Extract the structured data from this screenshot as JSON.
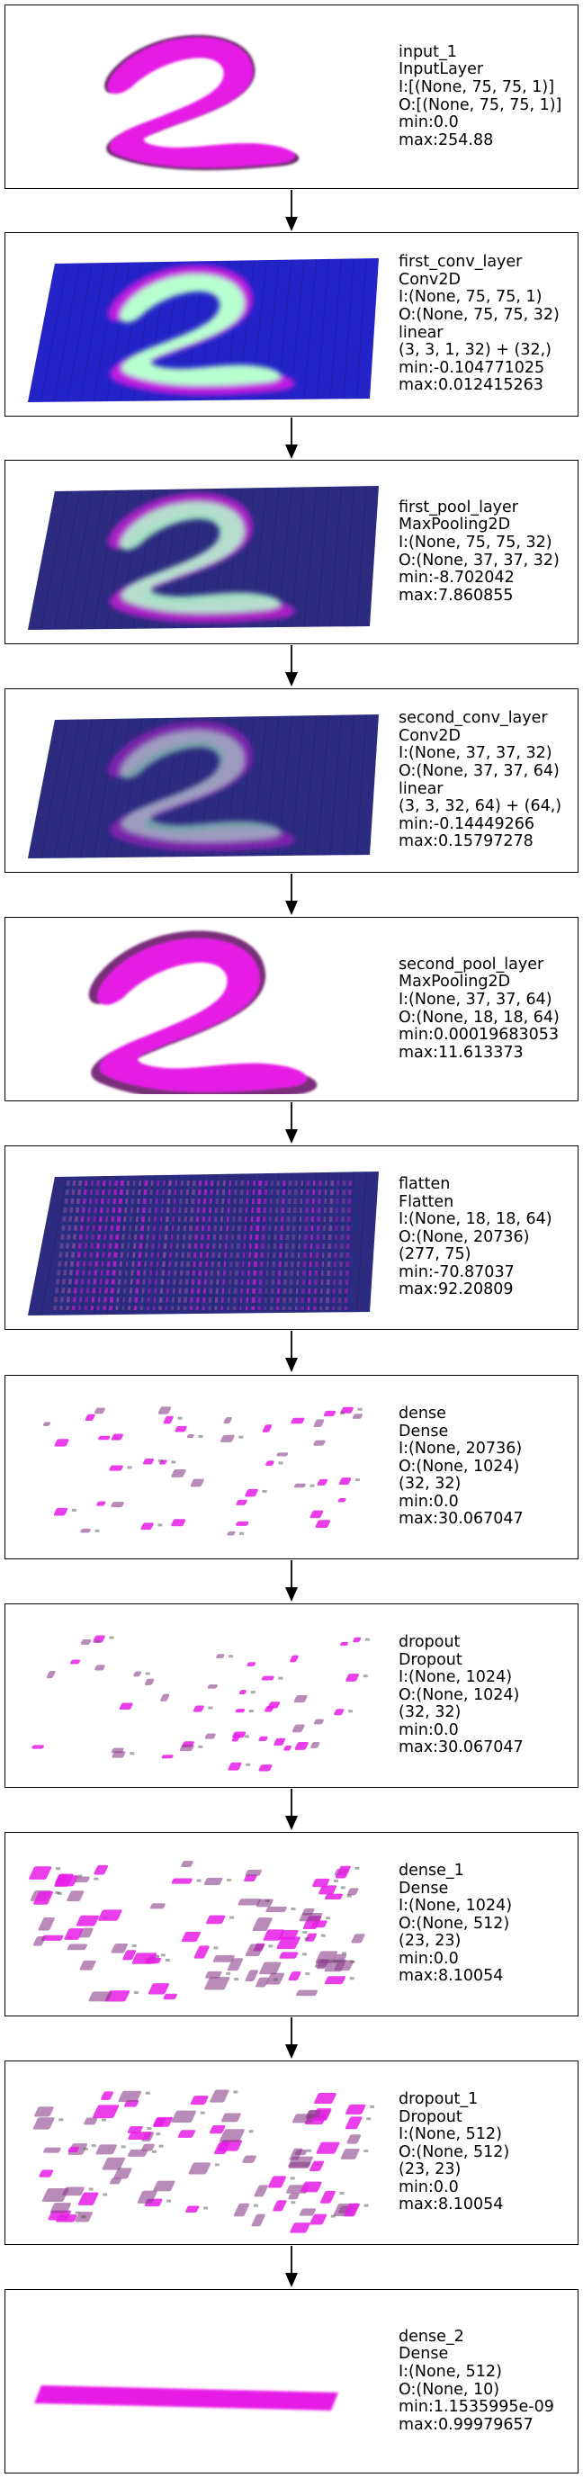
{
  "layers": [
    {
      "viz": "digit",
      "lines": [
        "input_1",
        "InputLayer",
        "I:[(None, 75, 75, 1)]",
        "O:[(None, 75, 75, 1)]",
        "min:0.0",
        "max:254.88"
      ]
    },
    {
      "viz": "plane_digit_bright",
      "lines": [
        "first_conv_layer",
        "Conv2D",
        "I:(None, 75, 75, 1)",
        "O:(None, 75, 75, 32)",
        "linear",
        "(3, 3, 1, 32) + (32,)",
        "min:-0.104771025",
        "max:0.012415263"
      ]
    },
    {
      "viz": "plane_digit_dark",
      "lines": [
        "first_pool_layer",
        "MaxPooling2D",
        "I:(None, 75, 75, 32)",
        "O:(None, 37, 37, 32)",
        "min:-8.702042",
        "max:7.860855"
      ]
    },
    {
      "viz": "plane_digit_faint",
      "lines": [
        "second_conv_layer",
        "Conv2D",
        "I:(None, 37, 37, 32)",
        "O:(None, 37, 37, 64)",
        "linear",
        "(3, 3, 32, 64) + (64,)",
        "min:-0.14449266",
        "max:0.15797278"
      ]
    },
    {
      "viz": "blob_digit",
      "lines": [
        "second_pool_layer",
        "MaxPooling2D",
        "I:(None, 37, 37, 64)",
        "O:(None, 18, 18, 64)",
        "min:0.00019683053",
        "max:11.613373"
      ]
    },
    {
      "viz": "plane_stripes",
      "lines": [
        "flatten",
        "Flatten",
        "I:(None, 18, 18, 64)",
        "O:(None, 20736)",
        "(277, 75)",
        "min:-70.87037",
        "max:92.20809"
      ]
    },
    {
      "viz": "sparse",
      "lines": [
        "dense",
        "Dense",
        "I:(None, 20736)",
        "O:(None, 1024)",
        "(32, 32)",
        "min:0.0",
        "max:30.067047"
      ]
    },
    {
      "viz": "sparse",
      "lines": [
        "dropout",
        "Dropout",
        "I:(None, 1024)",
        "O:(None, 1024)",
        "(32, 32)",
        "min:0.0",
        "max:30.067047"
      ]
    },
    {
      "viz": "sparse_dense",
      "lines": [
        "dense_1",
        "Dense",
        "I:(None, 1024)",
        "O:(None, 512)",
        "(23, 23)",
        "min:0.0",
        "max:8.10054"
      ]
    },
    {
      "viz": "sparse_dense",
      "lines": [
        "dropout_1",
        "Dropout",
        "I:(None, 512)",
        "O:(None, 512)",
        "(23, 23)",
        "min:0.0",
        "max:8.10054"
      ]
    },
    {
      "viz": "bar",
      "lines": [
        "dense_2",
        "Dense",
        "I:(None, 512)",
        "O:(None, 10)",
        "min:1.1535995e-09",
        "max:0.99979657"
      ]
    }
  ],
  "colors": {
    "magenta": "#e61ce6",
    "plane_blue": "#2323c8",
    "plane_dark": "#2b2b80",
    "green_glow": "#b8ffd0",
    "box_border": "#000000"
  }
}
